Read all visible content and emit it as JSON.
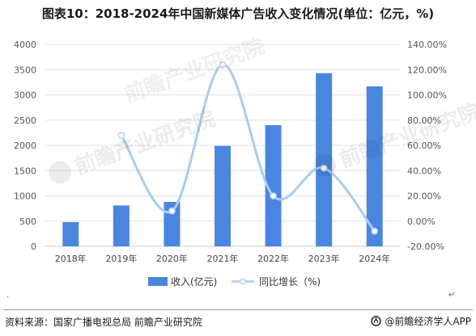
{
  "figure_title": "图表10：2018-2024年中国新媒体广告收入变化情况(单位：亿元，%)",
  "source": "资料来源：国家广播电视总局 前瞻产业研究院",
  "brand_text": "@前瞻经济学人APP",
  "watermark_text": "前瞻产业研究院",
  "corner_mark": "↵",
  "dot_mark": ".",
  "colors": {
    "bar": "#4a86e0",
    "line": "#a9cdec",
    "marker_stroke": "#b8d4ee",
    "grid": "#e3e3e3"
  },
  "chart_data": {
    "type": "bar+line",
    "categories": [
      "2018年",
      "2019年",
      "2020年",
      "2021年",
      "2022年",
      "2023年",
      "2024年"
    ],
    "series": [
      {
        "name": "收入(亿元)",
        "type": "bar",
        "axis": "left",
        "values": [
          480,
          810,
          880,
          1990,
          2400,
          3430,
          3170
        ]
      },
      {
        "name": "同比增长（%)",
        "type": "line",
        "axis": "right",
        "values": [
          null,
          68,
          8,
          124,
          20,
          42,
          -8
        ]
      }
    ],
    "y_left": {
      "min": 0,
      "max": 4000,
      "ticks": [
        "0",
        "500",
        "1000",
        "1500",
        "2000",
        "2500",
        "3000",
        "3500",
        "4000"
      ]
    },
    "y_right": {
      "min": -20,
      "max": 140,
      "ticks": [
        "-20.00%",
        "0.00%",
        "20.00%",
        "40.00%",
        "60.00%",
        "80.00%",
        "100.00%",
        "120.00%",
        "140.00%"
      ]
    },
    "grid": true,
    "legend_position": "bottom-center"
  }
}
